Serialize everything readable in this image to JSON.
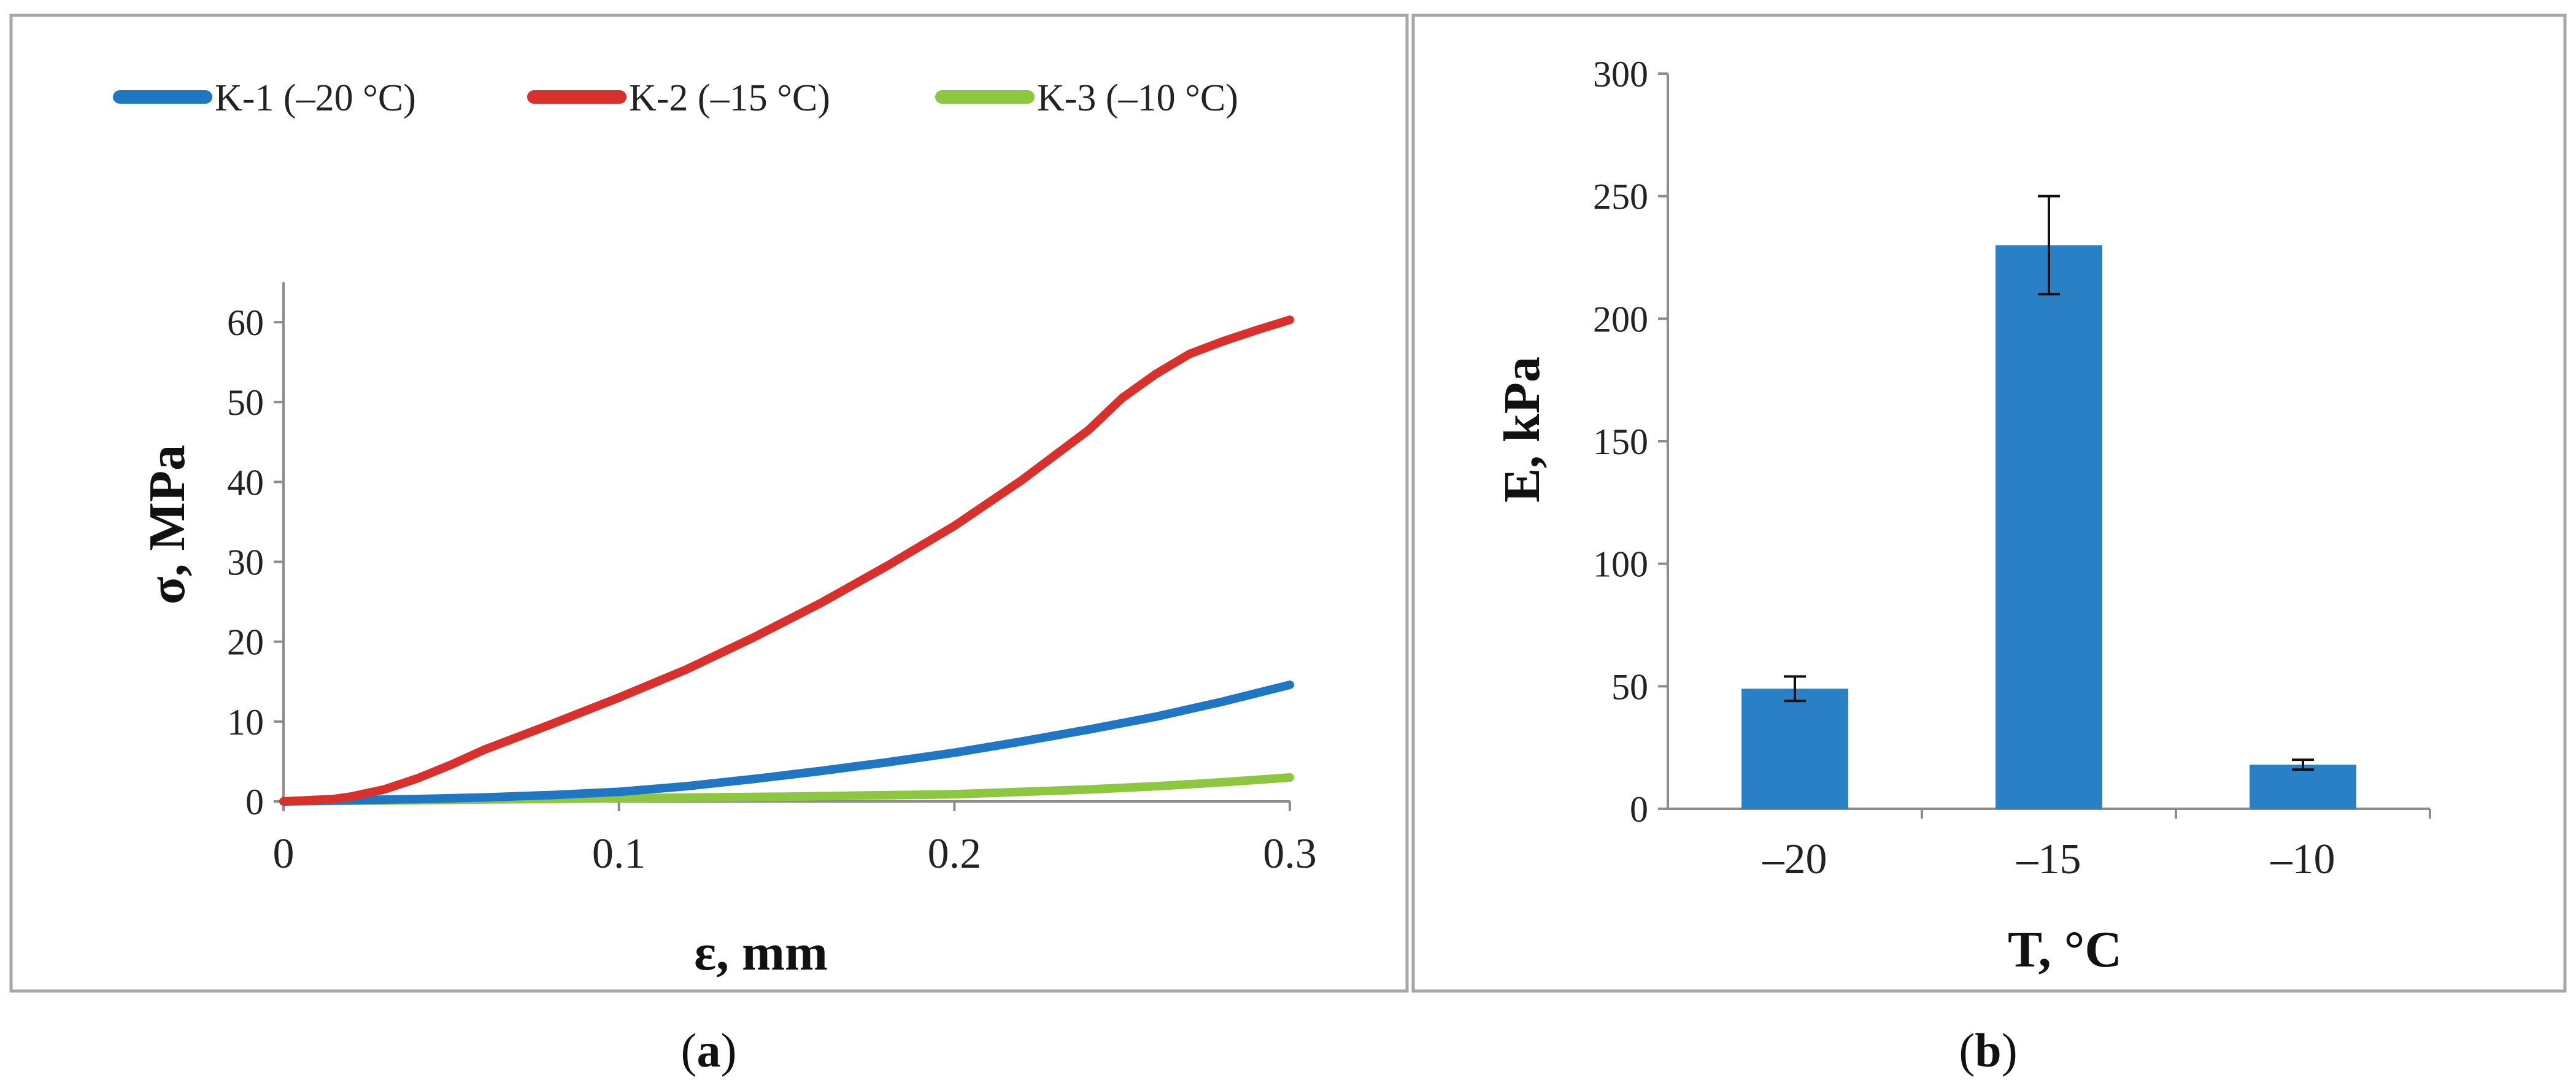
{
  "colors": {
    "k1": "#1f77c4",
    "k2": "#d9302b",
    "k3": "#8dc63f",
    "bar": "#2a80c5",
    "frame": "#a6a6a6",
    "axis": "#8c8c8c"
  },
  "chart_data": [
    {
      "type": "line",
      "panel_label": {
        "open": "(",
        "letter": "a",
        "close": ")"
      },
      "xlabel": "ε, mm",
      "ylabel": "σ, MPa",
      "xlim": [
        0,
        0.3
      ],
      "ylim": [
        0,
        65
      ],
      "xticks": [
        0,
        0.1,
        0.2,
        0.3
      ],
      "xtick_labels": [
        "0",
        "0.1",
        "0.2",
        "0.3"
      ],
      "yticks": [
        0,
        10,
        20,
        30,
        40,
        50,
        60
      ],
      "ytick_labels": [
        "0",
        "10",
        "20",
        "30",
        "40",
        "50",
        "60"
      ],
      "legend_position": "top",
      "series": [
        {
          "name": "K-1 (–20 °C)",
          "color_key": "k1",
          "x": [
            0,
            0.02,
            0.04,
            0.06,
            0.08,
            0.1,
            0.12,
            0.14,
            0.16,
            0.18,
            0.2,
            0.22,
            0.24,
            0.26,
            0.28,
            0.3
          ],
          "y": [
            0,
            0.15,
            0.3,
            0.5,
            0.8,
            1.2,
            1.9,
            2.8,
            3.8,
            4.9,
            6.1,
            7.5,
            9.0,
            10.6,
            12.5,
            14.6
          ]
        },
        {
          "name": "K-2 (–15 °C)",
          "color_key": "k2",
          "x": [
            0,
            0.015,
            0.02,
            0.03,
            0.04,
            0.05,
            0.06,
            0.08,
            0.1,
            0.12,
            0.14,
            0.16,
            0.18,
            0.2,
            0.22,
            0.24,
            0.25,
            0.26,
            0.27,
            0.28,
            0.29,
            0.3
          ],
          "y": [
            0,
            0.3,
            0.6,
            1.5,
            2.9,
            4.6,
            6.5,
            9.7,
            13.0,
            16.5,
            20.5,
            24.8,
            29.5,
            34.5,
            40.2,
            46.5,
            50.5,
            53.5,
            56.0,
            57.6,
            59.0,
            60.3
          ]
        },
        {
          "name": "K-3 (–10 °C)",
          "color_key": "k3",
          "x": [
            0,
            0.05,
            0.1,
            0.15,
            0.2,
            0.22,
            0.24,
            0.26,
            0.28,
            0.3
          ],
          "y": [
            0,
            0.2,
            0.4,
            0.6,
            0.9,
            1.2,
            1.5,
            1.9,
            2.4,
            3.0
          ]
        }
      ]
    },
    {
      "type": "bar",
      "panel_label": {
        "open": "(",
        "letter": "b",
        "close": ")"
      },
      "xlabel": "T, °C",
      "ylabel": "E, kPa",
      "ylim": [
        0,
        300
      ],
      "yticks": [
        0,
        50,
        100,
        150,
        200,
        250,
        300
      ],
      "ytick_labels": [
        "0",
        "50",
        "100",
        "150",
        "200",
        "250",
        "300"
      ],
      "categories": [
        "–20",
        "–15",
        "–10"
      ],
      "values": [
        49,
        230,
        18
      ],
      "errors": [
        5,
        20,
        2
      ]
    }
  ]
}
